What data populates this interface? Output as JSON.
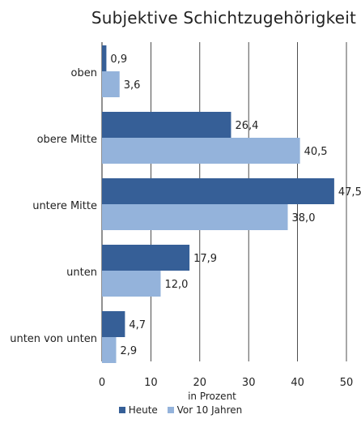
{
  "chart_data": {
    "type": "bar",
    "orientation": "horizontal",
    "title": "Subjektive Schichtzugehörigkeit",
    "xlabel": "in Prozent",
    "ylabel": "",
    "xlim": [
      0,
      50
    ],
    "x_ticks": [
      "0",
      "10",
      "20",
      "30",
      "40",
      "50"
    ],
    "grid": true,
    "legend_position": "bottom",
    "categories": [
      "oben",
      "obere Mitte",
      "untere Mitte",
      "unten",
      "unten von unten"
    ],
    "series": [
      {
        "name": "Heute",
        "color": "#365f97",
        "values": [
          0.9,
          26.4,
          47.5,
          17.9,
          4.7
        ],
        "labels": [
          "0,9",
          "26,4",
          "47,5",
          "17,9",
          "4,7"
        ]
      },
      {
        "name": "Vor 10 Jahren",
        "color": "#94b3db",
        "values": [
          3.6,
          40.5,
          38.0,
          12.0,
          2.9
        ],
        "labels": [
          "3,6",
          "40,5",
          "38,0",
          "12,0",
          "2,9"
        ]
      }
    ]
  }
}
